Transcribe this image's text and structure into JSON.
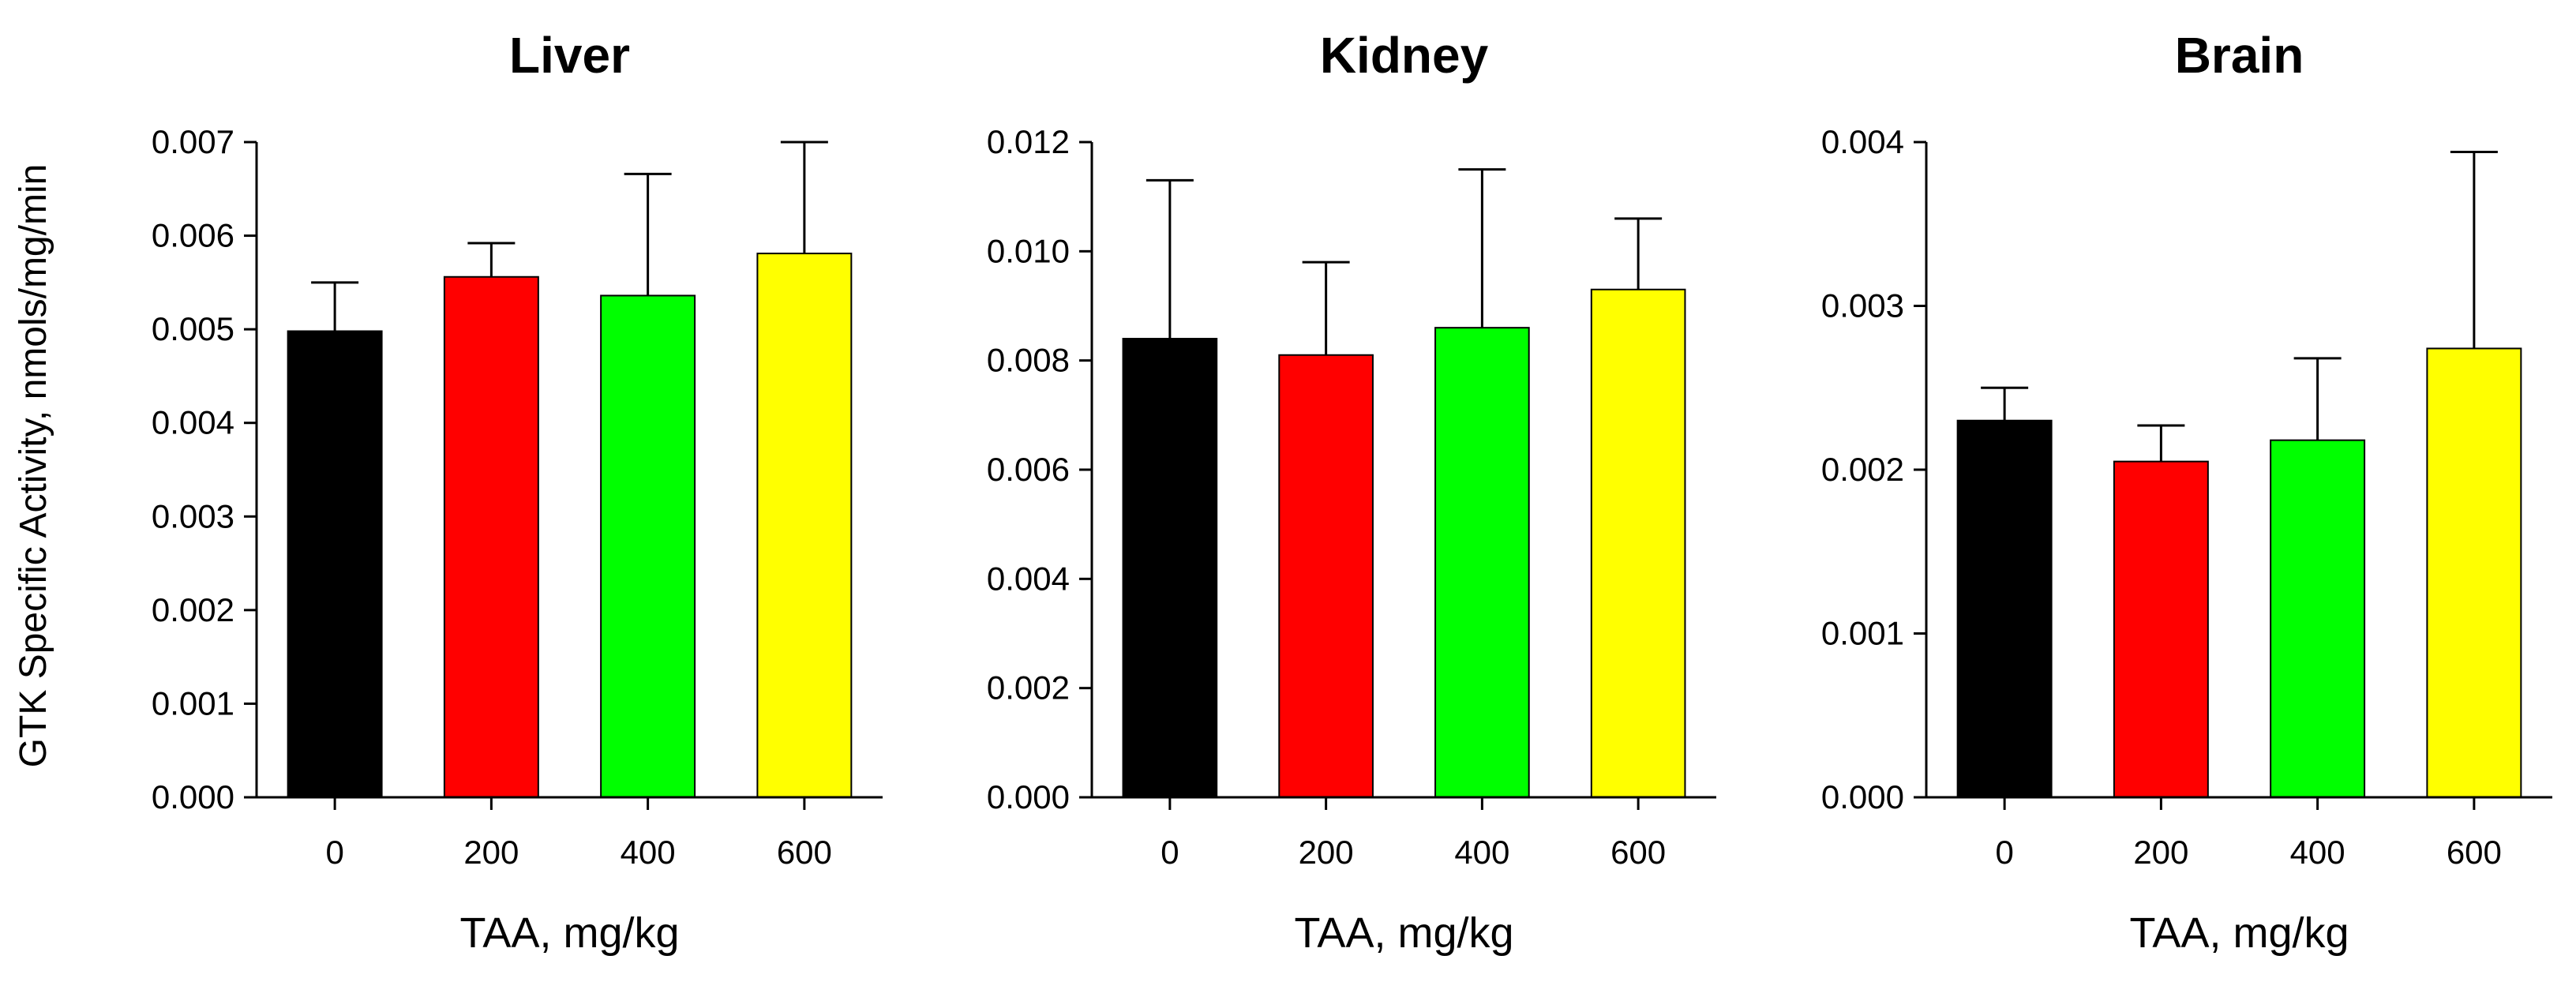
{
  "figure": {
    "ylabel": "GTK Specific Activity, nmols/mg/min"
  },
  "chart_data": [
    {
      "type": "bar",
      "title": "Liver",
      "xlabel": "TAA, mg/kg",
      "categories": [
        "0",
        "200",
        "400",
        "600"
      ],
      "values": [
        0.00498,
        0.00556,
        0.00536,
        0.00581
      ],
      "errors": [
        0.00052,
        0.00036,
        0.0013,
        0.00119
      ],
      "colors": [
        "#000000",
        "#ff0000",
        "#00ff00",
        "#ffff00"
      ],
      "ylim": [
        0,
        0.007
      ],
      "yticks": [
        0,
        0.001,
        0.002,
        0.003,
        0.004,
        0.005,
        0.006,
        0.007
      ],
      "ytick_labels": [
        "0.000",
        "0.001",
        "0.002",
        "0.003",
        "0.004",
        "0.005",
        "0.006",
        "0.007"
      ]
    },
    {
      "type": "bar",
      "title": "Kidney",
      "xlabel": "TAA, mg/kg",
      "categories": [
        "0",
        "200",
        "400",
        "600"
      ],
      "values": [
        0.0084,
        0.0081,
        0.0086,
        0.0093
      ],
      "errors": [
        0.0029,
        0.0017,
        0.0029,
        0.0013
      ],
      "colors": [
        "#000000",
        "#ff0000",
        "#00ff00",
        "#ffff00"
      ],
      "ylim": [
        0,
        0.012
      ],
      "yticks": [
        0,
        0.002,
        0.004,
        0.006,
        0.008,
        0.01,
        0.012
      ],
      "ytick_labels": [
        "0.000",
        "0.002",
        "0.004",
        "0.006",
        "0.008",
        "0.010",
        "0.012"
      ]
    },
    {
      "type": "bar",
      "title": "Brain",
      "xlabel": "TAA, mg/kg",
      "categories": [
        "0",
        "200",
        "400",
        "600"
      ],
      "values": [
        0.0023,
        0.00205,
        0.00218,
        0.00274
      ],
      "errors": [
        0.0002,
        0.00022,
        0.0005,
        0.0012
      ],
      "colors": [
        "#000000",
        "#ff0000",
        "#00ff00",
        "#ffff00"
      ],
      "ylim": [
        0,
        0.004
      ],
      "yticks": [
        0,
        0.001,
        0.002,
        0.003,
        0.004
      ],
      "ytick_labels": [
        "0.000",
        "0.001",
        "0.002",
        "0.003",
        "0.004"
      ]
    }
  ]
}
